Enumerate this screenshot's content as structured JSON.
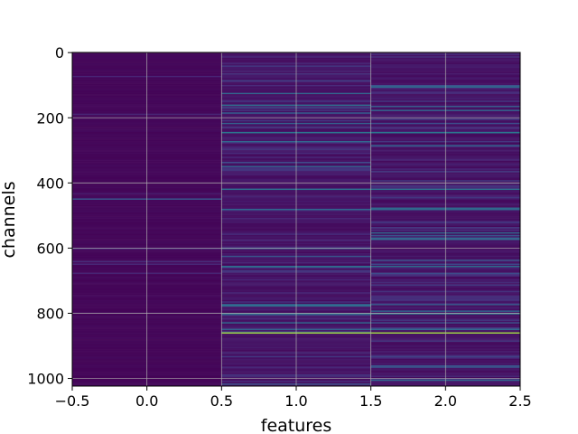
{
  "chart_data": {
    "type": "heatmap",
    "title": "",
    "xlabel": "features",
    "ylabel": "channels",
    "xlim": [
      -0.5,
      2.5
    ],
    "ylim": [
      1023.5,
      -0.5
    ],
    "y_inverted": true,
    "grid": true,
    "colormap": "viridis",
    "colorbar": false,
    "xticks": [
      -0.5,
      0.0,
      0.5,
      1.0,
      1.5,
      2.0,
      2.5
    ],
    "xtick_labels": [
      "−0.5",
      "0.0",
      "0.5",
      "1.0",
      "1.5",
      "2.0",
      "2.5"
    ],
    "yticks": [
      0,
      200,
      400,
      600,
      800,
      1000
    ],
    "ytick_labels": [
      "0",
      "200",
      "400",
      "600",
      "800",
      "1000"
    ],
    "n_rows": 1024,
    "columns": [
      {
        "feature": 0,
        "description": "nearly uniform low values",
        "base_level": 0.02
      },
      {
        "feature": 1,
        "base_level": 0.06
      },
      {
        "feature": 2,
        "base_level": 0.06
      }
    ],
    "notable_rows": [
      {
        "channel": 859,
        "features": [
          1,
          2
        ],
        "level": 0.92
      },
      {
        "channel": 244,
        "features": [
          1,
          2
        ],
        "level": 0.45
      },
      {
        "channel": 418,
        "features": [
          1,
          2
        ],
        "level": 0.42
      },
      {
        "channel": 480,
        "features": [
          1,
          2
        ],
        "level": 0.38
      },
      {
        "channel": 655,
        "features": [
          1,
          2
        ],
        "level": 0.4
      },
      {
        "channel": 800,
        "features": [
          1,
          2
        ],
        "level": 0.45
      },
      {
        "channel": 448,
        "features": [
          0
        ],
        "level": 0.3
      }
    ]
  }
}
